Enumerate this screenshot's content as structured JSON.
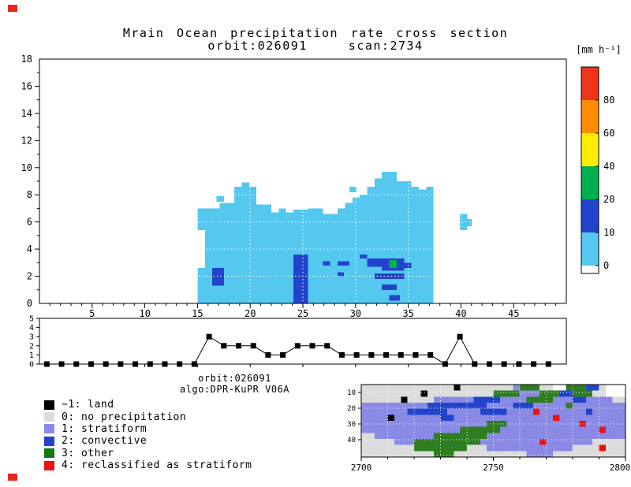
{
  "page": {
    "title": "Mrain Ocean precipitation rate cross section",
    "subtitle_orbit": "orbit:026091",
    "subtitle_scan": "scan:2734",
    "colorbar_units": "[mm h⁻¹]",
    "annotation_orbit": "orbit:026091",
    "annotation_algo": "algo:DPR-KuPR V06A"
  },
  "legend": {
    "items": [
      {
        "label": "−1: land",
        "color": "#000000"
      },
      {
        "label": "0: no precipitation",
        "color": "#DCDCDC"
      },
      {
        "label": "1: stratiform",
        "color": "#8A8AE6"
      },
      {
        "label": "2: convective",
        "color": "#2244CC"
      },
      {
        "label": "3: other",
        "color": "#157815"
      },
      {
        "label": "4: reclassified as stratiform",
        "color": "#EE1111"
      }
    ]
  },
  "chart_data": [
    {
      "type": "heatmap",
      "name": "precipitation-rate-cross-section",
      "title": "Mrain Ocean precipitation rate cross section",
      "subtitle": "orbit:026091 scan:2734",
      "xlim": [
        0,
        50
      ],
      "ylim": [
        0,
        18
      ],
      "xticks": [
        5,
        10,
        15,
        20,
        25,
        30,
        35,
        40,
        45
      ],
      "yticks": [
        0,
        2,
        4,
        6,
        8,
        10,
        12,
        14,
        16,
        18
      ],
      "grid": "dotted-white",
      "colorbar": {
        "title": "[mm h⁻¹]",
        "tick_labels": [
          "80",
          "60",
          "40",
          "20",
          "10",
          "0"
        ],
        "colors_top_to_bottom": [
          "#EE3419",
          "#FF8C00",
          "#FFEC00",
          "#00B050",
          "#2244CC",
          "#55C8F0",
          "#FFFFFF"
        ]
      },
      "levels": {
        "1": {
          "range_mm_h": "0-10",
          "color": "#55C8F0"
        },
        "2": {
          "range_mm_h": "10-20",
          "color": "#2244CC"
        },
        "3": {
          "range_mm_h": "20-40",
          "color": "#00B050"
        }
      },
      "cells_format": "[x0, x1, y0, y1, level]",
      "cells": [
        [
          15.0,
          15.7,
          0,
          2.6,
          1
        ],
        [
          15.0,
          15.7,
          5.4,
          7.0,
          1
        ],
        [
          15.7,
          16.4,
          0,
          7.0,
          1
        ],
        [
          16.4,
          17.1,
          0,
          7.0,
          1
        ],
        [
          17.1,
          17.8,
          0,
          7.4,
          1
        ],
        [
          17.8,
          18.5,
          0,
          7.4,
          1
        ],
        [
          18.5,
          19.2,
          0,
          8.6,
          1
        ],
        [
          19.2,
          19.9,
          0,
          8.9,
          1
        ],
        [
          19.9,
          20.6,
          0,
          8.6,
          1
        ],
        [
          20.6,
          21.3,
          0,
          7.3,
          1
        ],
        [
          21.3,
          22.0,
          0,
          7.3,
          1
        ],
        [
          22.0,
          22.7,
          0,
          6.7,
          1
        ],
        [
          22.7,
          23.4,
          0,
          7.0,
          1
        ],
        [
          23.4,
          24.1,
          0,
          6.7,
          1
        ],
        [
          24.1,
          24.8,
          0,
          6.9,
          1
        ],
        [
          24.8,
          25.5,
          0,
          6.9,
          1
        ],
        [
          25.5,
          26.2,
          0,
          7.0,
          1
        ],
        [
          26.2,
          26.9,
          0,
          7.0,
          1
        ],
        [
          26.9,
          27.6,
          0,
          6.6,
          1
        ],
        [
          27.6,
          28.3,
          0,
          6.6,
          1
        ],
        [
          28.3,
          29.0,
          0,
          7.0,
          1
        ],
        [
          29.0,
          29.7,
          0,
          7.4,
          1
        ],
        [
          29.7,
          30.4,
          0,
          7.8,
          1
        ],
        [
          30.4,
          31.1,
          0,
          8.0,
          1
        ],
        [
          31.1,
          31.8,
          0,
          8.6,
          1
        ],
        [
          31.8,
          32.5,
          0,
          9.2,
          1
        ],
        [
          32.5,
          33.2,
          0,
          9.7,
          1
        ],
        [
          33.2,
          33.9,
          0,
          9.7,
          1
        ],
        [
          33.9,
          34.6,
          0,
          9.0,
          1
        ],
        [
          34.6,
          35.3,
          0,
          9.0,
          1
        ],
        [
          35.3,
          36.0,
          0,
          8.6,
          1
        ],
        [
          36.0,
          36.7,
          0,
          8.4,
          1
        ],
        [
          36.7,
          37.4,
          0,
          8.6,
          1
        ],
        [
          16.8,
          17.5,
          7.5,
          7.9,
          1
        ],
        [
          29.4,
          30.1,
          8.2,
          8.6,
          1
        ],
        [
          39.9,
          40.6,
          5.4,
          6.6,
          1
        ],
        [
          40.6,
          41.0,
          5.7,
          6.2,
          1
        ],
        [
          16.4,
          17.5,
          1.3,
          2.6,
          2
        ],
        [
          24.1,
          25.5,
          0.0,
          3.6,
          2
        ],
        [
          26.9,
          27.6,
          2.8,
          3.1,
          2
        ],
        [
          28.3,
          29.4,
          2.8,
          3.1,
          2
        ],
        [
          28.3,
          28.9,
          2.0,
          2.3,
          2
        ],
        [
          30.4,
          31.1,
          3.3,
          3.6,
          2
        ],
        [
          31.1,
          32.5,
          2.7,
          3.3,
          2
        ],
        [
          32.5,
          34.6,
          2.4,
          3.3,
          2
        ],
        [
          31.8,
          34.6,
          1.8,
          2.2,
          2
        ],
        [
          32.5,
          33.9,
          1.0,
          1.4,
          2
        ],
        [
          33.2,
          34.2,
          0.2,
          0.6,
          2
        ],
        [
          34.6,
          35.3,
          2.6,
          3.0,
          2
        ],
        [
          33.2,
          33.9,
          2.6,
          3.2,
          3
        ]
      ]
    },
    {
      "type": "line",
      "name": "rain-type-profile",
      "marker": "square",
      "xlim": [
        0,
        50
      ],
      "ylim": [
        0,
        5
      ],
      "yticks": [
        0,
        1,
        2,
        3,
        4,
        5
      ],
      "x": [
        0.7,
        2.1,
        3.5,
        4.9,
        6.3,
        7.7,
        9.1,
        10.5,
        11.9,
        13.3,
        14.7,
        16.1,
        17.5,
        18.9,
        20.3,
        21.7,
        23.1,
        24.5,
        25.9,
        27.3,
        28.7,
        30.1,
        31.5,
        32.9,
        34.3,
        35.7,
        37.1,
        38.5,
        39.9,
        41.3,
        42.7,
        44.1,
        45.5,
        46.9,
        48.3
      ],
      "values": [
        0,
        0,
        0,
        0,
        0,
        0,
        0,
        0,
        0,
        0,
        0,
        3,
        2,
        2,
        2,
        1,
        1,
        2,
        2,
        2,
        1,
        1,
        1,
        1,
        1,
        1,
        1,
        0,
        3,
        0,
        0,
        0,
        0,
        0,
        0
      ]
    },
    {
      "type": "heatmap",
      "name": "rain-type-map",
      "xlim": [
        2700,
        2800
      ],
      "ylim": [
        5,
        51
      ],
      "xticks": [
        2700,
        2750,
        2800
      ],
      "yticks": [
        10,
        20,
        30,
        40
      ],
      "palette": {
        "l": "#000000",
        "g": "#DCDCDC",
        "s": "#8A8AE6",
        "c": "#2244CC",
        "o": "#2E7D1F",
        "r": "#EE1111",
        "w": "#FFFFFF"
      },
      "rows": [
        "gggggggggggggglggggggggsoooggwwoooccgwww",
        "ggggggggglggggggggggoooosssoooccoooggwww",
        "gggggglggggssssssccccssssoooosssccssssgg",
        "sssssssssscccccccccsssscccsssssossssssss",
        "sssssssccccccsssssccccssssrssssssscsssss",
        "sssslsssssssccsssssssssssssssrssssssssss",
        "sssssssssssssssssssooosssssssssssrssssss",
        "sssssssssssssssoooooosssssssssssssssrsss",
        "ggsssssssssoooooooosssssssssssssssssssss",
        "gggggsssoooooooooosssssssssrsssssssggggg",
        "ggggggggoooooooogggsssssssssssssggggrggg",
        "gggggggggggooogggggggggggssssggggggggggg"
      ]
    }
  ]
}
